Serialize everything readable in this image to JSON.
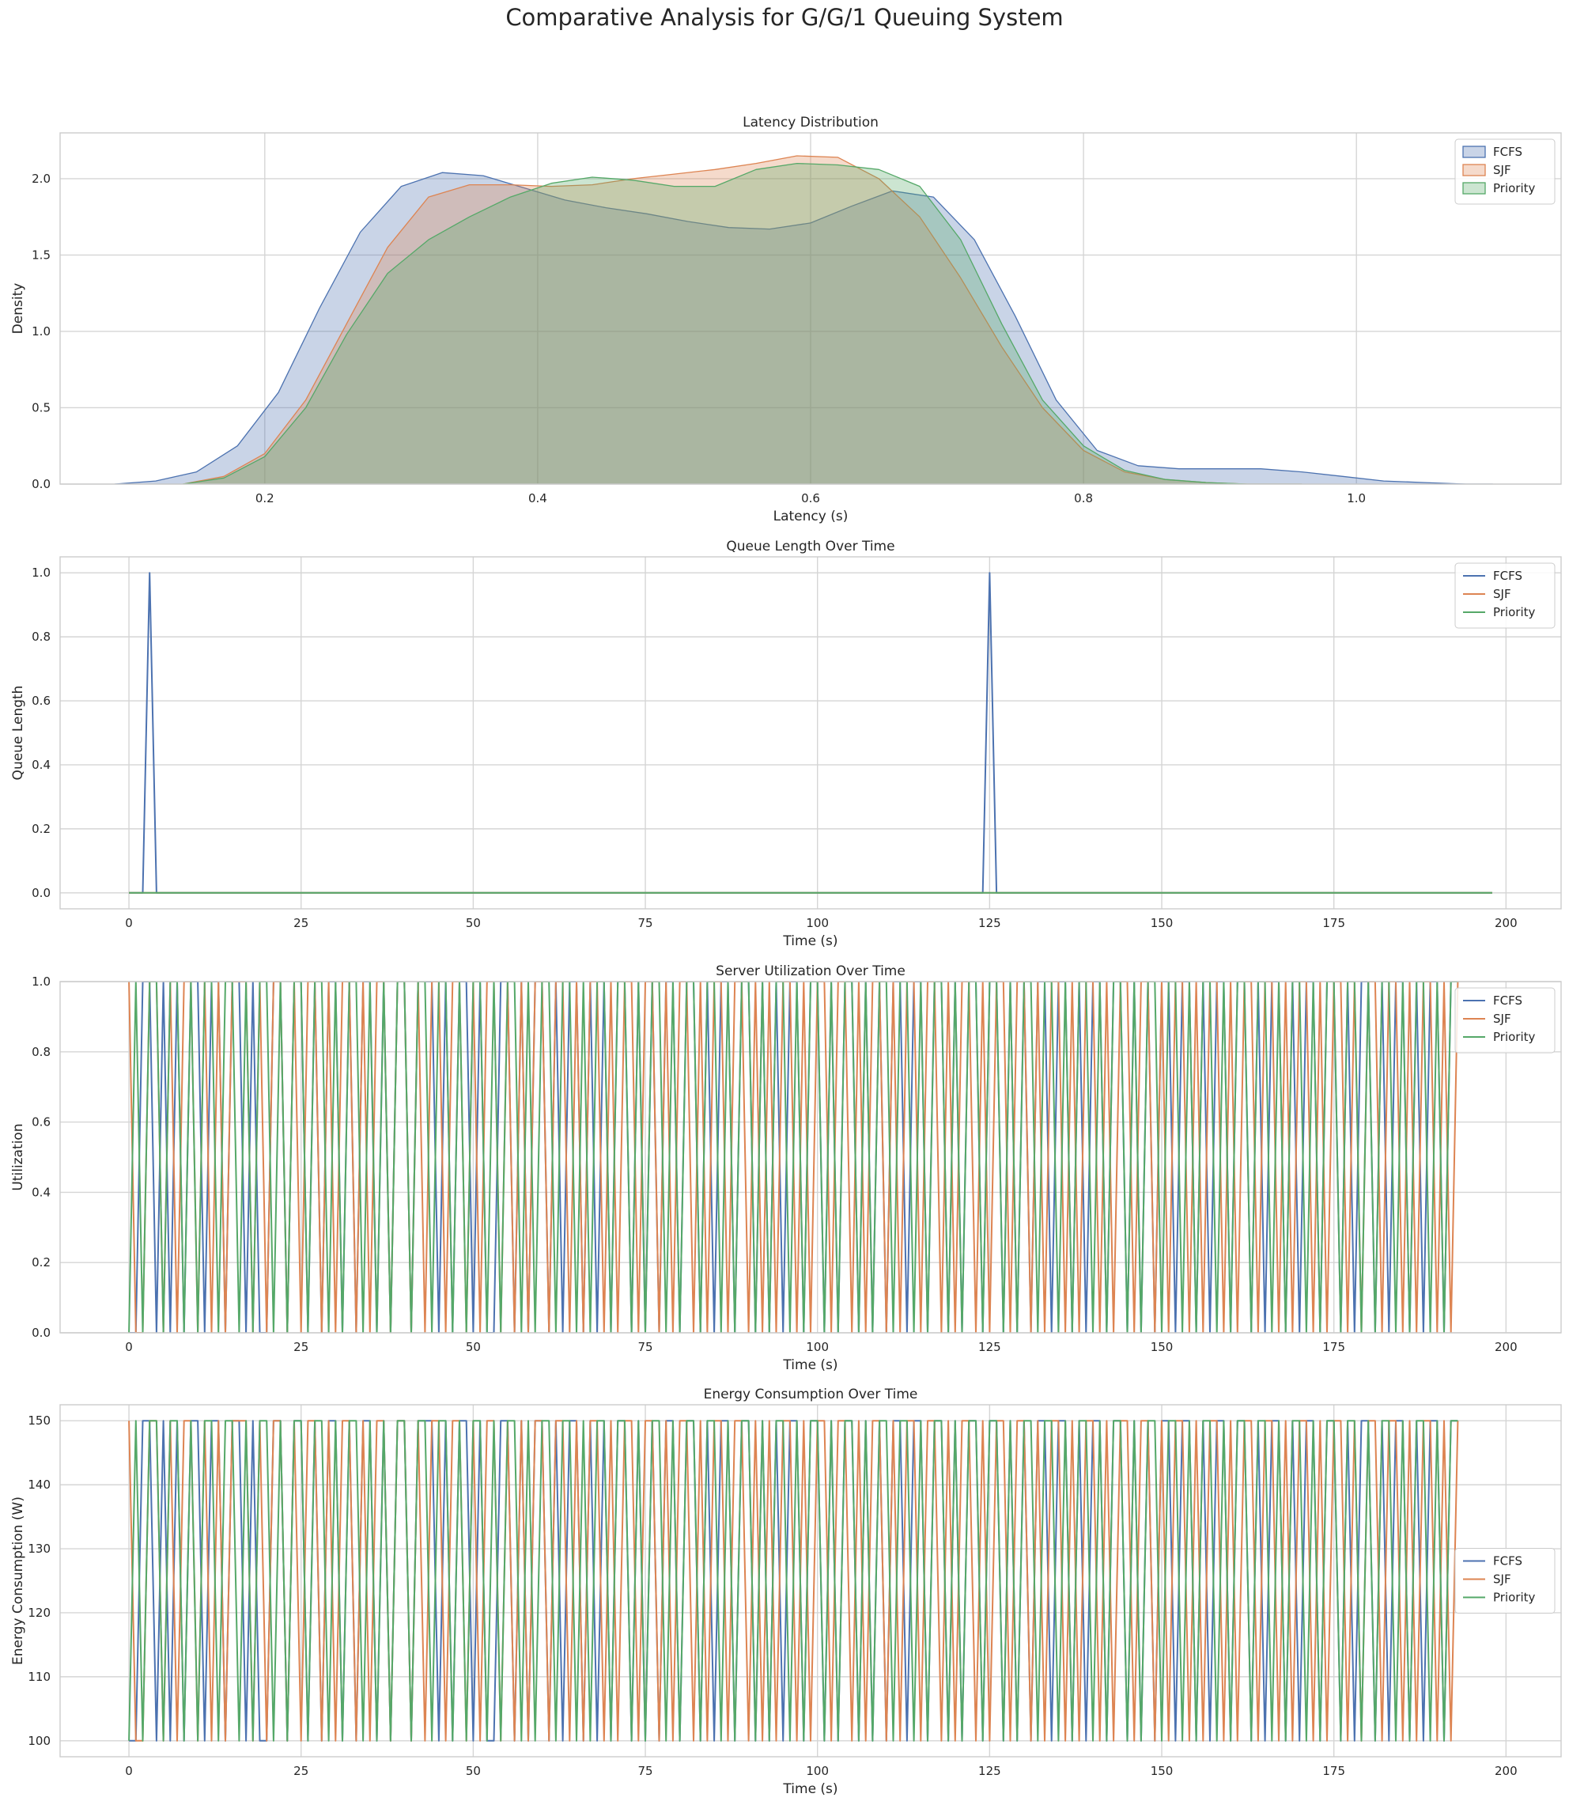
{
  "title": "Comparative Analysis for G/G/1 Queuing System",
  "colors": {
    "FCFS": "#4c72b0",
    "SJF": "#dd8452",
    "Priority": "#55a868",
    "grid": "#d5d5d5",
    "frame": "#cccccc"
  },
  "legend_labels": [
    "FCFS",
    "SJF",
    "Priority"
  ],
  "chart_data": [
    {
      "type": "area",
      "title": "Latency Distribution",
      "xlabel": "Latency (s)",
      "ylabel": "Density",
      "xlim": [
        0.05,
        1.15
      ],
      "ylim": [
        0,
        2.3
      ],
      "xticks": [
        0.2,
        0.4,
        0.6,
        0.8,
        1.0
      ],
      "xtick_labels": [
        "0.2",
        "0.4",
        "0.6",
        "0.8",
        "1.0"
      ],
      "yticks": [
        0,
        0.5,
        1.0,
        1.5,
        2.0
      ],
      "ytick_labels": [
        "0.0",
        "0.5",
        "1.0",
        "1.5",
        "2.0"
      ],
      "grid": true,
      "legend": "upper-right",
      "series": [
        {
          "name": "FCFS",
          "x": [
            0.09,
            0.12,
            0.15,
            0.18,
            0.21,
            0.24,
            0.27,
            0.3,
            0.33,
            0.36,
            0.39,
            0.42,
            0.45,
            0.48,
            0.51,
            0.54,
            0.57,
            0.6,
            0.63,
            0.66,
            0.69,
            0.72,
            0.75,
            0.78,
            0.81,
            0.84,
            0.87,
            0.9,
            0.93,
            0.96,
            0.99,
            1.02,
            1.05,
            1.08,
            1.1
          ],
          "y": [
            0.0,
            0.02,
            0.08,
            0.25,
            0.6,
            1.15,
            1.65,
            1.95,
            2.04,
            2.02,
            1.94,
            1.86,
            1.81,
            1.77,
            1.72,
            1.68,
            1.67,
            1.71,
            1.82,
            1.92,
            1.88,
            1.6,
            1.1,
            0.55,
            0.22,
            0.12,
            0.1,
            0.1,
            0.1,
            0.08,
            0.05,
            0.02,
            0.01,
            0.0,
            0.0
          ]
        },
        {
          "name": "SJF",
          "x": [
            0.14,
            0.17,
            0.2,
            0.23,
            0.26,
            0.29,
            0.32,
            0.35,
            0.38,
            0.41,
            0.44,
            0.47,
            0.5,
            0.53,
            0.56,
            0.59,
            0.62,
            0.65,
            0.68,
            0.71,
            0.74,
            0.77,
            0.8,
            0.83,
            0.86,
            0.89,
            0.92,
            0.96
          ],
          "y": [
            0.0,
            0.05,
            0.2,
            0.55,
            1.05,
            1.55,
            1.88,
            1.96,
            1.96,
            1.95,
            1.96,
            2.0,
            2.03,
            2.06,
            2.1,
            2.15,
            2.14,
            2.0,
            1.75,
            1.35,
            0.9,
            0.5,
            0.22,
            0.08,
            0.03,
            0.01,
            0.0,
            0.0
          ]
        },
        {
          "name": "Priority",
          "x": [
            0.14,
            0.17,
            0.2,
            0.23,
            0.26,
            0.29,
            0.32,
            0.35,
            0.38,
            0.41,
            0.44,
            0.47,
            0.5,
            0.53,
            0.56,
            0.59,
            0.62,
            0.65,
            0.68,
            0.71,
            0.74,
            0.77,
            0.8,
            0.83,
            0.86,
            0.89,
            0.92,
            0.96
          ],
          "y": [
            0.0,
            0.04,
            0.18,
            0.5,
            0.98,
            1.38,
            1.6,
            1.75,
            1.88,
            1.97,
            2.01,
            1.99,
            1.95,
            1.95,
            2.06,
            2.1,
            2.09,
            2.06,
            1.95,
            1.6,
            1.05,
            0.55,
            0.25,
            0.09,
            0.03,
            0.01,
            0.0,
            0.0
          ]
        }
      ]
    },
    {
      "type": "line",
      "title": "Queue Length Over Time",
      "xlabel": "Time (s)",
      "ylabel": "Queue Length",
      "xlim": [
        -10,
        208
      ],
      "ylim": [
        -0.05,
        1.05
      ],
      "xticks": [
        0,
        25,
        50,
        75,
        100,
        125,
        150,
        175,
        200
      ],
      "xtick_labels": [
        "0",
        "25",
        "50",
        "75",
        "100",
        "125",
        "150",
        "175",
        "200"
      ],
      "yticks": [
        0,
        0.2,
        0.4,
        0.6,
        0.8,
        1.0
      ],
      "ytick_labels": [
        "0.0",
        "0.2",
        "0.4",
        "0.6",
        "0.8",
        "1.0"
      ],
      "grid": true,
      "legend": "upper-right",
      "series": [
        {
          "name": "FCFS",
          "x": [
            0,
            2,
            3,
            4,
            124,
            125,
            126,
            198
          ],
          "y": [
            0,
            0,
            1,
            0,
            0,
            1,
            0,
            0
          ]
        },
        {
          "name": "SJF",
          "x": [
            0,
            198
          ],
          "y": [
            0,
            0
          ]
        },
        {
          "name": "Priority",
          "x": [
            0,
            198
          ],
          "y": [
            0,
            0
          ]
        }
      ]
    },
    {
      "type": "line",
      "title": "Server Utilization Over Time",
      "xlabel": "Time (s)",
      "ylabel": "Utilization",
      "xlim": [
        -10,
        208
      ],
      "ylim": [
        0,
        1
      ],
      "xticks": [
        0,
        25,
        50,
        75,
        100,
        125,
        150,
        175,
        200
      ],
      "xtick_labels": [
        "0",
        "25",
        "50",
        "75",
        "100",
        "125",
        "150",
        "175",
        "200"
      ],
      "yticks": [
        0,
        0.2,
        0.4,
        0.6,
        0.8,
        1.0
      ],
      "ytick_labels": [
        "0.0",
        "0.2",
        "0.4",
        "0.6",
        "0.8",
        "1.0"
      ],
      "grid": true,
      "legend": "upper-right",
      "series_signal": {
        "FCFS": "0011010101101101101001101101011010110101101110101101001101011010110101011010101101101011011010101101101011010101101101101011011010101101101011011010101101101011011010110101101101011010110101101101",
        "SJF": "1001101011010101110101101011010110101101101011011010110101011011010110101101101011010110110101011010110110101101011011010110101101101011010110101101101011010110101101101011010110101101101011010110",
        "Priority": "0101101101011011010110101101101011010101101101101011010110101101101011011010110101101101011010110101101011010110110101101011011010110110101101011010110110101101011011010110101101101011010110101101"
      }
    },
    {
      "type": "line",
      "title": "Energy Consumption Over Time",
      "xlabel": "Time (s)",
      "ylabel": "Energy Consumption (W)",
      "xlim": [
        -10,
        208
      ],
      "ylim": [
        97.5,
        152.5
      ],
      "xticks": [
        0,
        25,
        50,
        75,
        100,
        125,
        150,
        175,
        200
      ],
      "xtick_labels": [
        "0",
        "25",
        "50",
        "75",
        "100",
        "125",
        "150",
        "175",
        "200"
      ],
      "yticks": [
        100,
        110,
        120,
        130,
        140,
        150
      ],
      "ytick_labels": [
        "100",
        "110",
        "120",
        "130",
        "140",
        "150"
      ],
      "grid": true,
      "legend": "center-right",
      "series_signal_levels": [
        100,
        150
      ]
    }
  ]
}
